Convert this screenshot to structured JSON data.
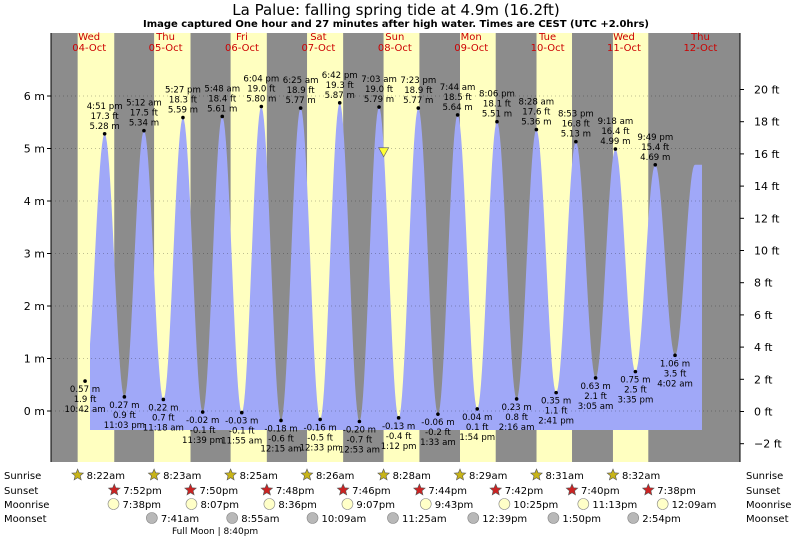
{
  "chart_data": {
    "type": "area",
    "title": "La Palue: falling  spring tide at 4.9m (16.2ft)",
    "subtitle": "Image captured One hour and 27 minutes after high water. Times are CEST (UTC +2.0hrs)",
    "ylabel_left_unit": "m",
    "ylabel_right_unit": "ft",
    "ylim_m": [
      -0.9,
      6.7
    ],
    "y_ticks_m": [
      0,
      1,
      2,
      3,
      4,
      5,
      6
    ],
    "y_tick_labels_m": [
      "0 m",
      "1 m",
      "2 m",
      "3 m",
      "4 m",
      "5 m",
      "6 m"
    ],
    "y_ticks_ft": [
      -2,
      0,
      2,
      4,
      6,
      8,
      10,
      12,
      14,
      16,
      18,
      20
    ],
    "y_tick_labels_ft": [
      "−2 ft",
      "0 ft",
      "2 ft",
      "4 ft",
      "6 ft",
      "8 ft",
      "10 ft",
      "12 ft",
      "14 ft",
      "16 ft",
      "18 ft",
      "20 ft"
    ],
    "days": [
      {
        "name": "Wed",
        "date": "04-Oct"
      },
      {
        "name": "Thu",
        "date": "05-Oct"
      },
      {
        "name": "Fri",
        "date": "06-Oct"
      },
      {
        "name": "Sat",
        "date": "07-Oct"
      },
      {
        "name": "Sun",
        "date": "08-Oct"
      },
      {
        "name": "Mon",
        "date": "09-Oct"
      },
      {
        "name": "Tue",
        "date": "10-Oct"
      },
      {
        "name": "Wed",
        "date": "11-Oct"
      },
      {
        "name": "Thu",
        "date": "12-Oct"
      }
    ],
    "daylight": [
      {
        "sunrise_h": 8.37,
        "sunset_h": 19.87
      },
      {
        "sunrise_h": 8.38,
        "sunset_h": 19.83
      },
      {
        "sunrise_h": 8.42,
        "sunset_h": 19.8
      },
      {
        "sunrise_h": 8.43,
        "sunset_h": 19.77
      },
      {
        "sunrise_h": 8.47,
        "sunset_h": 19.73
      },
      {
        "sunrise_h": 8.48,
        "sunset_h": 19.7
      },
      {
        "sunrise_h": 8.52,
        "sunset_h": 19.67
      },
      {
        "sunrise_h": 8.53,
        "sunset_h": 19.63
      }
    ],
    "high_tides": [
      {
        "day": 0,
        "h": 16.85,
        "m": 5.28,
        "time": "4:51 pm",
        "ft": "17.3 ft",
        "mtext": "5.28 m"
      },
      {
        "day": 1,
        "h": 5.2,
        "m": 5.34,
        "time": "5:12 am",
        "ft": "17.5 ft",
        "mtext": "5.34 m"
      },
      {
        "day": 1,
        "h": 17.45,
        "m": 5.59,
        "time": "5:27 pm",
        "ft": "18.3 ft",
        "mtext": "5.59 m"
      },
      {
        "day": 2,
        "h": 5.8,
        "m": 5.61,
        "time": "5:48 am",
        "ft": "18.4 ft",
        "mtext": "5.61 m"
      },
      {
        "day": 2,
        "h": 18.07,
        "m": 5.8,
        "time": "6:04 pm",
        "ft": "19.0 ft",
        "mtext": "5.80 m"
      },
      {
        "day": 3,
        "h": 6.42,
        "m": 5.77,
        "time": "6:25 am",
        "ft": "18.9 ft",
        "mtext": "5.77 m"
      },
      {
        "day": 3,
        "h": 18.7,
        "m": 5.87,
        "time": "6:42 pm",
        "ft": "19.3 ft",
        "mtext": "5.87 m"
      },
      {
        "day": 4,
        "h": 7.05,
        "m": 5.79,
        "time": "7:03 am",
        "ft": "19.0 ft",
        "mtext": "5.79 m"
      },
      {
        "day": 4,
        "h": 19.38,
        "m": 5.77,
        "time": "7:23 pm",
        "ft": "18.9 ft",
        "mtext": "5.77 m"
      },
      {
        "day": 5,
        "h": 7.73,
        "m": 5.64,
        "time": "7:44 am",
        "ft": "18.5 ft",
        "mtext": "5.64 m"
      },
      {
        "day": 5,
        "h": 20.1,
        "m": 5.51,
        "time": "8:06 pm",
        "ft": "18.1 ft",
        "mtext": "5.51 m"
      },
      {
        "day": 6,
        "h": 8.47,
        "m": 5.36,
        "time": "8:28 am",
        "ft": "17.6 ft",
        "mtext": "5.36 m"
      },
      {
        "day": 6,
        "h": 20.88,
        "m": 5.13,
        "time": "8:53 pm",
        "ft": "16.8 ft",
        "mtext": "5.13 m"
      },
      {
        "day": 7,
        "h": 9.3,
        "m": 4.99,
        "time": "9:18 am",
        "ft": "16.4 ft",
        "mtext": "4.99 m"
      },
      {
        "day": 7,
        "h": 21.82,
        "m": 4.69,
        "time": "9:49 pm",
        "ft": "15.4 ft",
        "mtext": "4.69 m"
      }
    ],
    "low_tides": [
      {
        "day": 0,
        "h": 10.7,
        "m": 0.57,
        "time": "10:42 am",
        "ft": "1.9 ft",
        "mtext": "0.57 m"
      },
      {
        "day": 0,
        "h": 23.05,
        "m": 0.27,
        "time": "11:03 pm",
        "ft": "0.9 ft",
        "mtext": "0.27 m"
      },
      {
        "day": 1,
        "h": 11.3,
        "m": 0.22,
        "time": "11:18 am",
        "ft": "0.7 ft",
        "mtext": "0.22 m"
      },
      {
        "day": 1,
        "h": 23.65,
        "m": -0.02,
        "time": "11:39 pm",
        "ft": "-0.1 ft",
        "mtext": "-0.02 m"
      },
      {
        "day": 2,
        "h": 11.92,
        "m": -0.03,
        "time": "11:55 am",
        "ft": "-0.1 ft",
        "mtext": "-0.03 m"
      },
      {
        "day": 3,
        "h": 0.25,
        "m": -0.18,
        "time": "12:15 am",
        "ft": "-0.6 ft",
        "mtext": "-0.18 m"
      },
      {
        "day": 3,
        "h": 12.55,
        "m": -0.16,
        "time": "12:33 pm",
        "ft": "-0.5 ft",
        "mtext": "-0.16 m"
      },
      {
        "day": 4,
        "h": 0.88,
        "m": -0.2,
        "time": "12:53 am",
        "ft": "-0.7 ft",
        "mtext": "-0.20 m"
      },
      {
        "day": 4,
        "h": 13.2,
        "m": -0.13,
        "time": "1:12 pm",
        "ft": "-0.4 ft",
        "mtext": "-0.13 m"
      },
      {
        "day": 5,
        "h": 1.55,
        "m": -0.06,
        "time": "1:33 am",
        "ft": "-0.2 ft",
        "mtext": "-0.06 m"
      },
      {
        "day": 5,
        "h": 13.9,
        "m": 0.04,
        "time": "1:54 pm",
        "ft": "0.1 ft",
        "mtext": "0.04 m"
      },
      {
        "day": 6,
        "h": 2.27,
        "m": 0.23,
        "time": "2:16 am",
        "ft": "0.8 ft",
        "mtext": "0.23 m"
      },
      {
        "day": 6,
        "h": 14.68,
        "m": 0.35,
        "time": "2:41 pm",
        "ft": "1.1 ft",
        "mtext": "0.35 m"
      },
      {
        "day": 7,
        "h": 3.08,
        "m": 0.63,
        "time": "3:05 am",
        "ft": "2.1 ft",
        "mtext": "0.63 m"
      },
      {
        "day": 7,
        "h": 15.58,
        "m": 0.75,
        "time": "3:35 pm",
        "ft": "2.5 ft",
        "mtext": "0.75 m"
      },
      {
        "day": 8,
        "h": 4.03,
        "m": 1.06,
        "time": "4:02 am",
        "ft": "3.5 ft",
        "mtext": "1.06 m"
      }
    ],
    "current": {
      "day": 4,
      "h": 8.5,
      "m": 4.9
    }
  },
  "rows": {
    "labels_left": [
      "Sunrise",
      "Sunset",
      "Moonrise",
      "Moonset"
    ],
    "labels_right": [
      "Sunrise",
      "Sunset",
      "Moonrise",
      "Moonset"
    ],
    "sunrise": [
      {
        "day": 0,
        "h": 8.37,
        "text": "8:22am"
      },
      {
        "day": 1,
        "h": 8.38,
        "text": "8:23am"
      },
      {
        "day": 2,
        "h": 8.42,
        "text": "8:25am"
      },
      {
        "day": 3,
        "h": 8.43,
        "text": "8:26am"
      },
      {
        "day": 4,
        "h": 8.47,
        "text": "8:28am"
      },
      {
        "day": 5,
        "h": 8.48,
        "text": "8:29am"
      },
      {
        "day": 6,
        "h": 8.52,
        "text": "8:31am"
      },
      {
        "day": 7,
        "h": 8.53,
        "text": "8:32am"
      }
    ],
    "sunset": [
      {
        "day": 0,
        "h": 19.87,
        "text": "7:52pm"
      },
      {
        "day": 1,
        "h": 19.83,
        "text": "7:50pm"
      },
      {
        "day": 2,
        "h": 19.8,
        "text": "7:48pm"
      },
      {
        "day": 3,
        "h": 19.77,
        "text": "7:46pm"
      },
      {
        "day": 4,
        "h": 19.73,
        "text": "7:44pm"
      },
      {
        "day": 5,
        "h": 19.7,
        "text": "7:42pm"
      },
      {
        "day": 6,
        "h": 19.67,
        "text": "7:40pm"
      },
      {
        "day": 7,
        "h": 19.63,
        "text": "7:38pm"
      }
    ],
    "moonrise": [
      {
        "day": 0,
        "h": 19.63,
        "text": "7:38pm"
      },
      {
        "day": 1,
        "h": 20.12,
        "text": "8:07pm"
      },
      {
        "day": 2,
        "h": 20.6,
        "text": "8:36pm"
      },
      {
        "day": 3,
        "h": 21.12,
        "text": "9:07pm"
      },
      {
        "day": 4,
        "h": 21.72,
        "text": "9:43pm"
      },
      {
        "day": 5,
        "h": 22.42,
        "text": "10:25pm"
      },
      {
        "day": 6,
        "h": 23.22,
        "text": "11:13pm"
      },
      {
        "day": 8,
        "h": 0.15,
        "text": "12:09am"
      }
    ],
    "moonset": [
      {
        "day": 1,
        "h": 7.68,
        "text": "7:41am"
      },
      {
        "day": 2,
        "h": 8.92,
        "text": "8:55am"
      },
      {
        "day": 3,
        "h": 10.15,
        "text": "10:09am"
      },
      {
        "day": 4,
        "h": 11.42,
        "text": "11:25am"
      },
      {
        "day": 5,
        "h": 12.65,
        "text": "12:39pm"
      },
      {
        "day": 6,
        "h": 13.83,
        "text": "1:50pm"
      },
      {
        "day": 7,
        "h": 14.9,
        "text": "2:54pm"
      }
    ],
    "full_moon": {
      "day": 1,
      "h": 20.67,
      "text": "Full Moon | 8:40pm"
    }
  },
  "colors": {
    "night": "#8c8c8c",
    "day": "#ffffc0",
    "water": "#a0a8f8",
    "sunrise_star": "#c8b418",
    "sunset_star": "#cc2222",
    "moonrise": "#ffffc8",
    "moonset": "#b8b8b8",
    "day_header": "#cc0000"
  }
}
